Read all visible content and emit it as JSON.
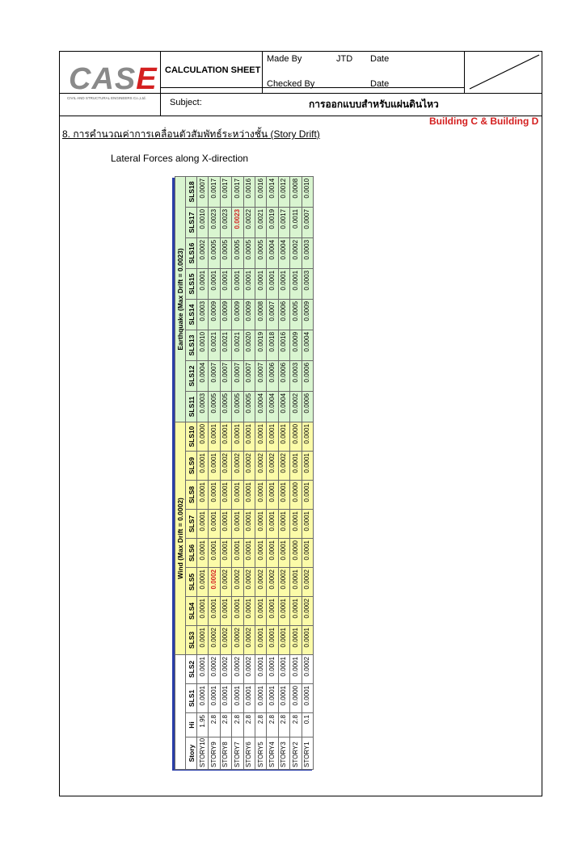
{
  "header": {
    "logo": "CASE",
    "logo_subtitle": "CIVIL AND STRUCTURAL ENGINEERS Co.,Ltd.",
    "sheet_title": "CALCULATION SHEET",
    "made_by_label": "Made By",
    "made_by_value": "JTD",
    "date_label_1": "Date",
    "checked_by_label": "Checked By",
    "date_label_2": "Date",
    "subject_label": "Subject:",
    "subject_value": "การออกแบบสำหรับแผ่นดินไหว"
  },
  "building_label": "Building C & Building D",
  "section_heading": "8. การคำนวณค่าการเคลื่อนตัวสัมพัทธ์ระหว่างชั้น (Story Drift)",
  "subheading": "Lateral Forces along X-direction",
  "table": {
    "group_wind": "Wind (Max Drift = 0.0002)",
    "group_eq": "Earthquake (Max Drift = 0.0023)",
    "columns": [
      "Story",
      "Hi",
      "SLS1",
      "SLS2",
      "SLS3",
      "SLS4",
      "SLS5",
      "SLS6",
      "SLS7",
      "SLS8",
      "SLS9",
      "SLS10",
      "SLS11",
      "SLS12",
      "SLS13",
      "SLS14",
      "SLS15",
      "SLS16",
      "SLS17",
      "SLS18"
    ],
    "rows": [
      [
        "STORY10",
        "1.95",
        "0.0001",
        "0.0001",
        "0.0001",
        "0.0001",
        "0.0001",
        "0.0001",
        "0.0001",
        "0.0001",
        "0.0001",
        "0.0000",
        "0.0003",
        "0.0004",
        "0.0010",
        "0.0003",
        "0.0001",
        "0.0002",
        "0.0010",
        "0.0007"
      ],
      [
        "STORY9",
        "2.8",
        "0.0001",
        "0.0002",
        "0.0002",
        "0.0001",
        "0.0002",
        "0.0001",
        "0.0001",
        "0.0001",
        "0.0001",
        "0.0001",
        "0.0005",
        "0.0007",
        "0.0021",
        "0.0009",
        "0.0001",
        "0.0005",
        "0.0023",
        "0.0017"
      ],
      [
        "STORY8",
        "2.8",
        "0.0001",
        "0.0002",
        "0.0002",
        "0.0001",
        "0.0002",
        "0.0001",
        "0.0001",
        "0.0001",
        "0.0002",
        "0.0001",
        "0.0005",
        "0.0007",
        "0.0021",
        "0.0009",
        "0.0001",
        "0.0005",
        "0.0023",
        "0.0017"
      ],
      [
        "STORY7",
        "2.8",
        "0.0001",
        "0.0002",
        "0.0002",
        "0.0001",
        "0.0002",
        "0.0001",
        "0.0001",
        "0.0001",
        "0.0002",
        "0.0001",
        "0.0005",
        "0.0007",
        "0.0021",
        "0.0009",
        "0.0001",
        "0.0005",
        "0.0023",
        "0.0017"
      ],
      [
        "STORY6",
        "2.8",
        "0.0001",
        "0.0002",
        "0.0002",
        "0.0001",
        "0.0002",
        "0.0001",
        "0.0001",
        "0.0001",
        "0.0002",
        "0.0001",
        "0.0005",
        "0.0007",
        "0.0020",
        "0.0009",
        "0.0001",
        "0.0005",
        "0.0022",
        "0.0016"
      ],
      [
        "STORY5",
        "2.8",
        "0.0001",
        "0.0001",
        "0.0001",
        "0.0001",
        "0.0002",
        "0.0001",
        "0.0001",
        "0.0001",
        "0.0002",
        "0.0001",
        "0.0004",
        "0.0007",
        "0.0019",
        "0.0008",
        "0.0001",
        "0.0005",
        "0.0021",
        "0.0016"
      ],
      [
        "STORY4",
        "2.8",
        "0.0001",
        "0.0001",
        "0.0001",
        "0.0001",
        "0.0002",
        "0.0001",
        "0.0001",
        "0.0001",
        "0.0002",
        "0.0001",
        "0.0004",
        "0.0006",
        "0.0018",
        "0.0007",
        "0.0001",
        "0.0004",
        "0.0019",
        "0.0014"
      ],
      [
        "STORY3",
        "2.8",
        "0.0001",
        "0.0001",
        "0.0001",
        "0.0001",
        "0.0002",
        "0.0001",
        "0.0001",
        "0.0001",
        "0.0002",
        "0.0001",
        "0.0004",
        "0.0006",
        "0.0016",
        "0.0006",
        "0.0001",
        "0.0004",
        "0.0017",
        "0.0012"
      ],
      [
        "STORY2",
        "2.8",
        "0.0000",
        "0.0001",
        "0.0001",
        "0.0001",
        "0.0001",
        "0.0000",
        "0.0001",
        "0.0000",
        "0.0001",
        "0.0000",
        "0.0002",
        "0.0003",
        "0.0009",
        "0.0005",
        "0.0001",
        "0.0002",
        "0.0011",
        "0.0008"
      ],
      [
        "STORY1",
        "0.1",
        "0.0001",
        "0.0002",
        "0.0001",
        "0.0002",
        "0.0002",
        "0.0001",
        "0.0001",
        "0.0001",
        "0.0001",
        "0.0001",
        "0.0006",
        "0.0006",
        "0.0004",
        "0.0009",
        "0.0003",
        "0.0003",
        "0.0007",
        "0.0010"
      ]
    ]
  }
}
